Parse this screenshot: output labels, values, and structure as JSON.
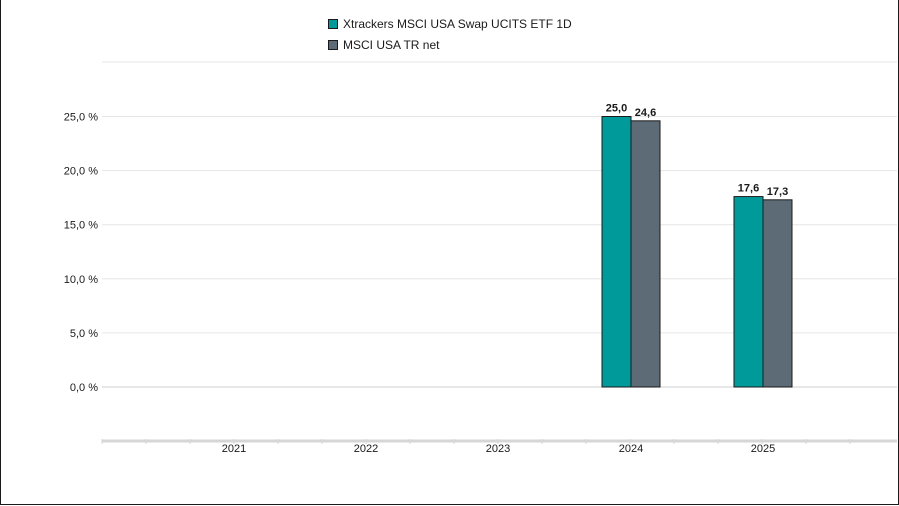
{
  "chart_data": {
    "type": "bar",
    "categories": [
      "2021",
      "2022",
      "2023",
      "2024",
      "2025"
    ],
    "series": [
      {
        "name": "Xtrackers MSCI USA Swap UCITS ETF 1D",
        "color": "#009a9a",
        "values": [
          null,
          null,
          null,
          25.0,
          17.6
        ],
        "labels": [
          "",
          "",
          "",
          "25,0",
          "17,6"
        ]
      },
      {
        "name": "MSCI USA TR net",
        "color": "#5c6b75",
        "values": [
          null,
          null,
          null,
          24.6,
          17.3
        ],
        "labels": [
          "",
          "",
          "",
          "24,6",
          "17,3"
        ]
      }
    ],
    "ylim": [
      -5,
      30
    ],
    "yticks": [
      0,
      5,
      10,
      15,
      20,
      25
    ],
    "ytick_labels": [
      "0,0 %",
      "5,0 %",
      "10,0 %",
      "15,0 %",
      "20,0 %",
      "25,0 %"
    ],
    "grid": true,
    "legend_position": "top-center"
  }
}
